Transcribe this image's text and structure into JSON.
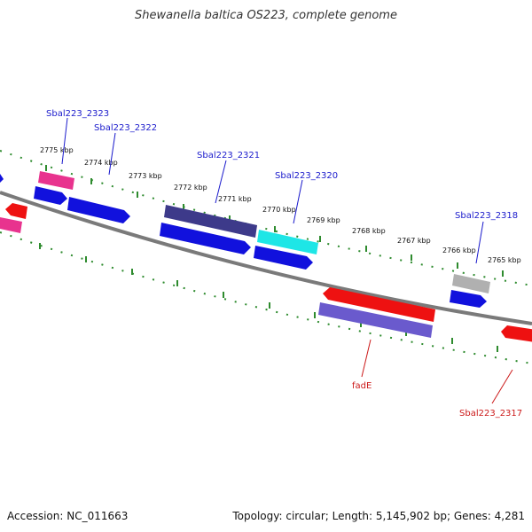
{
  "title": "Shewanella baltica OS223, complete genome",
  "footer": {
    "accession": "Accession: NC_011663",
    "topology": "Topology: circular; Length: 5,145,902 bp; Genes: 4,281"
  },
  "scale_labels": [
    "2775 kbp",
    "2774 kbp",
    "2773 kbp",
    "2772 kbp",
    "2771 kbp",
    "2770 kbp",
    "2769 kbp",
    "2768 kbp",
    "2767 kbp",
    "2766 kbp",
    "2765 kbp"
  ],
  "gene_labels": [
    {
      "text": "Sbal223_2323",
      "color": "#1a1acc"
    },
    {
      "text": "Sbal223_2322",
      "color": "#1a1acc"
    },
    {
      "text": "Sbal223_2321",
      "color": "#1a1acc"
    },
    {
      "text": "Sbal223_2320",
      "color": "#1a1acc"
    },
    {
      "text": "Sbal223_2318",
      "color": "#1a1acc"
    },
    {
      "text": "fadE",
      "color": "#cc1a1a"
    },
    {
      "text": "Sbal223_2317",
      "color": "#cc1a1a"
    }
  ],
  "colors": {
    "backbone": "#7a7a7a",
    "tick": "#2e8b2e",
    "forward_cds": "#1111dd",
    "reverse_cds": "#ee1111",
    "pink_feature": "#e8338e",
    "navy_feature": "#3d3a8a",
    "cyan_feature": "#1ee6e6",
    "lavender_feature": "#6a5acd",
    "grey_feature": "#b0b0b0"
  }
}
